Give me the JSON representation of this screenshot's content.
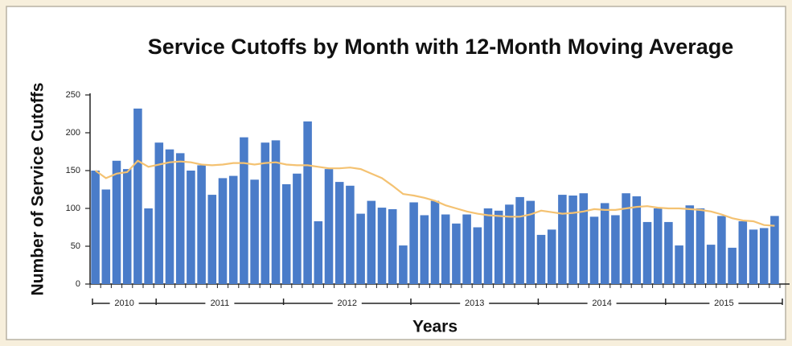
{
  "chart_data": {
    "type": "bar",
    "title": "Service Cutoffs by Month with 12-Month Moving Average",
    "y_label": "Number of Service Cutoffs",
    "x_label": "Years",
    "categories": [
      null,
      null,
      null,
      null,
      null,
      null,
      null,
      null,
      null,
      null,
      null,
      null,
      null,
      null,
      null,
      null,
      null,
      null,
      null,
      null,
      null,
      null,
      null,
      null,
      null,
      null,
      null,
      null,
      null,
      null,
      null,
      null,
      null,
      null,
      null,
      null,
      null,
      null,
      null,
      null,
      null,
      null,
      null,
      null,
      null,
      null,
      null,
      null,
      null,
      null,
      null,
      null,
      null,
      null,
      null,
      null,
      null,
      null,
      null,
      null,
      null,
      null,
      null,
      null,
      null
    ],
    "groups": [
      {
        "label": "2010",
        "months": 6
      },
      {
        "label": "2011",
        "months": 12
      },
      {
        "label": "2012",
        "months": 12
      },
      {
        "label": "2013",
        "months": 12
      },
      {
        "label": "2014",
        "months": 12
      },
      {
        "label": "2015",
        "months": 11
      }
    ],
    "series": [
      {
        "type": "bar",
        "color": "#4a7cc9",
        "values": [
          150,
          125,
          163,
          152,
          232,
          100,
          187,
          178,
          173,
          150,
          157,
          118,
          140,
          143,
          194,
          138,
          187,
          190,
          132,
          146,
          215,
          83,
          152,
          135,
          130,
          93,
          110,
          101,
          99,
          51,
          108,
          91,
          110,
          92,
          80,
          92,
          75,
          100,
          97,
          105,
          115,
          110,
          65,
          72,
          118,
          117,
          120,
          89,
          107,
          91,
          120,
          116,
          82,
          100,
          82,
          51,
          104,
          100,
          52,
          90,
          48,
          83,
          72,
          74,
          90
        ]
      },
      {
        "type": "line",
        "color": "#f4c272",
        "values": [
          150,
          140,
          146,
          148,
          163,
          155,
          158,
          161,
          162,
          161,
          158,
          157,
          158,
          160,
          160,
          158,
          160,
          161,
          158,
          157,
          157,
          155,
          153,
          153,
          154,
          152,
          146,
          140,
          130,
          119,
          117,
          114,
          110,
          104,
          100,
          96,
          93,
          91,
          90,
          89,
          89,
          92,
          97,
          95,
          93,
          94,
          96,
          99,
          98,
          98,
          100,
          102,
          103,
          101,
          100,
          100,
          99,
          98,
          96,
          92,
          87,
          84,
          83,
          78,
          77
        ]
      }
    ],
    "ylim": [
      0,
      250
    ],
    "yticks": [
      0,
      50,
      100,
      150,
      200,
      250
    ]
  }
}
